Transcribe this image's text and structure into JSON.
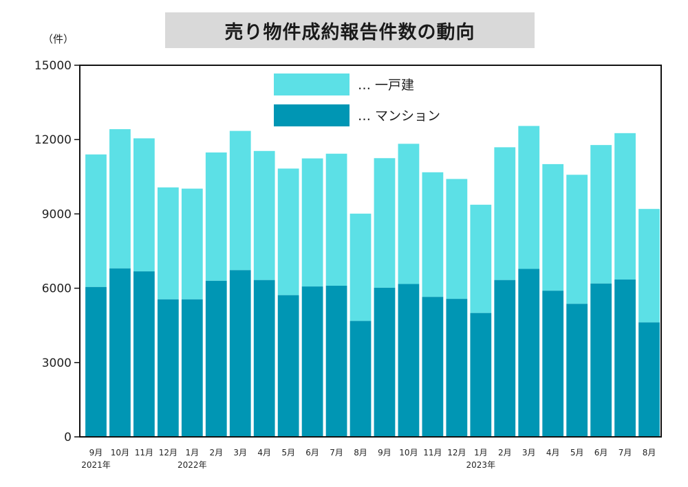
{
  "title": "売り物件成約報告件数の動向",
  "unit_label": "（件）",
  "colors": {
    "kodate": "#5ce0e6",
    "mansion": "#0096b4",
    "axis": "#111111"
  },
  "legend": {
    "kodate_label": "… 一戸建",
    "mansion_label": "… マンション"
  },
  "chart_data": {
    "type": "bar",
    "stacked": true,
    "title": "売り物件成約報告件数の動向",
    "ylabel": "（件）",
    "ylim": [
      0,
      15000
    ],
    "yticks": [
      0,
      3000,
      6000,
      9000,
      12000,
      15000
    ],
    "ytick_labels": [
      "0",
      "3000",
      "6000",
      "9000",
      "12000",
      "15000"
    ],
    "categories": [
      "9月",
      "10月",
      "11月",
      "12月",
      "1月",
      "2月",
      "3月",
      "4月",
      "5月",
      "6月",
      "7月",
      "8月",
      "9月",
      "10月",
      "11月",
      "12月",
      "1月",
      "2月",
      "3月",
      "4月",
      "5月",
      "6月",
      "7月",
      "8月"
    ],
    "year_markers": [
      {
        "index": 0,
        "label": "2021年"
      },
      {
        "index": 4,
        "label": "2022年"
      },
      {
        "index": 16,
        "label": "2023年"
      }
    ],
    "series": [
      {
        "name": "マンション",
        "values": [
          6050,
          6800,
          6680,
          5550,
          5550,
          6300,
          6730,
          6330,
          5720,
          6070,
          6100,
          4680,
          6020,
          6170,
          5650,
          5570,
          5000,
          6330,
          6780,
          5900,
          5370,
          6190,
          6350,
          4620
        ]
      },
      {
        "name": "一戸建",
        "values": [
          5350,
          5620,
          5370,
          4520,
          4470,
          5180,
          5620,
          5210,
          5110,
          5170,
          5330,
          4330,
          5230,
          5660,
          5030,
          4840,
          4370,
          5360,
          5770,
          5110,
          5210,
          5590,
          5910,
          4580
        ]
      }
    ],
    "legend_position": "top-center",
    "grid": false
  }
}
